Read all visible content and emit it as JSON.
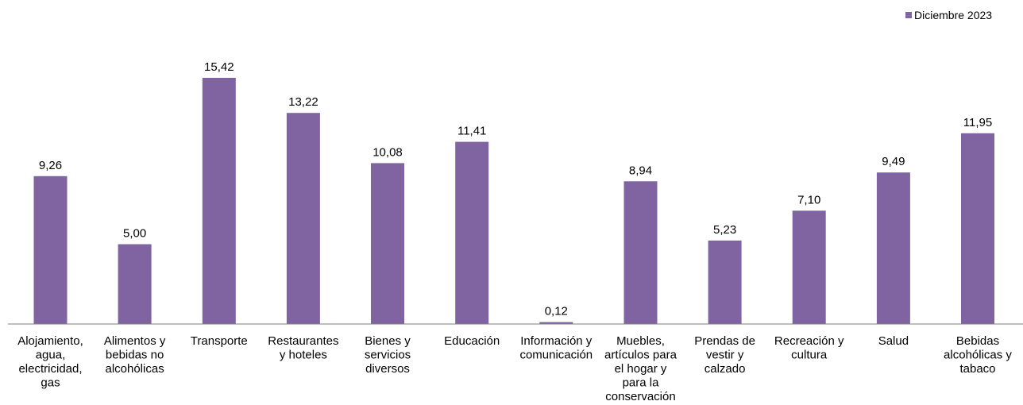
{
  "chart_data": {
    "type": "bar",
    "categories": [
      "Alojamiento, agua, electricidad, gas",
      "Alimentos y bebidas no alcohólicas",
      "Transporte",
      "Restaurantes y hoteles",
      "Bienes y servicios diversos",
      "Educación",
      "Información y comunicación",
      "Muebles, artículos para el hogar y para la conservación",
      "Prendas de vestir y calzado",
      "Recreación y cultura",
      "Salud",
      "Bebidas alcohólicas y tabaco"
    ],
    "category_lines": [
      [
        "Alojamiento,",
        "agua,",
        "electricidad,",
        "gas"
      ],
      [
        "Alimentos y",
        "bebidas no",
        "alcohólicas"
      ],
      [
        "Transporte"
      ],
      [
        "Restaurantes",
        "y hoteles"
      ],
      [
        "Bienes y",
        "servicios",
        "diversos"
      ],
      [
        "Educación"
      ],
      [
        "Información y",
        "comunicación"
      ],
      [
        "Muebles,",
        "artículos para",
        "el hogar y",
        "para la",
        "conservación"
      ],
      [
        "Prendas de",
        "vestir y",
        "calzado"
      ],
      [
        "Recreación y",
        "cultura"
      ],
      [
        "Salud"
      ],
      [
        "Bebidas",
        "alcohólicas y",
        "tabaco"
      ]
    ],
    "series": [
      {
        "name": "Diciembre 2023",
        "values": [
          9.26,
          5.0,
          15.42,
          13.22,
          10.08,
          11.41,
          0.12,
          8.94,
          5.23,
          7.1,
          9.49,
          11.95
        ],
        "labels": [
          "9,26",
          "5,00",
          "15,42",
          "13,22",
          "10,08",
          "11,41",
          "0,12",
          "8,94",
          "5,23",
          "7,10",
          "9,49",
          "11,95"
        ]
      }
    ],
    "ylim": [
      0,
      16
    ],
    "grid": false,
    "legend_position": "top-right",
    "colors": {
      "bar": "#8064A2",
      "axis": "#808080"
    }
  }
}
